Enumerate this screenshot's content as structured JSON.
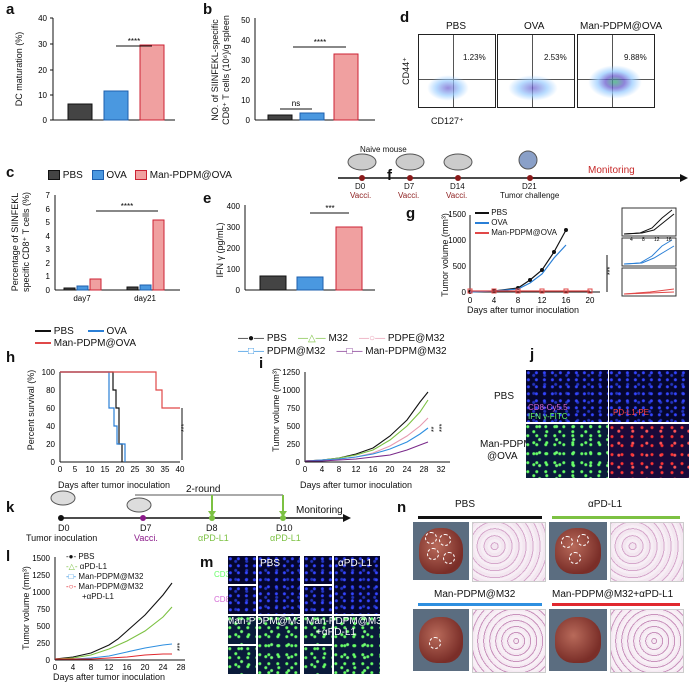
{
  "panel_labels": {
    "a": "a",
    "b": "b",
    "c": "c",
    "d": "d",
    "e": "e",
    "f": "f",
    "g": "g",
    "h": "h",
    "i": "i",
    "j": "j",
    "k": "k",
    "l": "l",
    "m": "m",
    "n": "n"
  },
  "common": {
    "sig4": "****",
    "sig3": "***",
    "ns": "ns"
  },
  "panel_a": {
    "ylabel": "DC maturation (%)",
    "yticks": [
      "0",
      "10",
      "20",
      "30",
      "40"
    ]
  },
  "panel_b": {
    "ylabel1": "NO. of SIINFEKL-specific",
    "ylabel2": "CD8⁺ T cells (10⁶)/g spleen",
    "yticks": [
      "0",
      "10",
      "20",
      "30",
      "40",
      "50"
    ]
  },
  "panel_d": {
    "groups": [
      "PBS",
      "OVA",
      "Man-PDPM@OVA"
    ],
    "percents": [
      "1.23%",
      "2.53%",
      "9.88%"
    ],
    "xlabel": "CD127⁺",
    "ylabel": "CD44⁺"
  },
  "panel_c": {
    "legend": [
      "PBS",
      "OVA",
      "Man-PDPM@OVA"
    ],
    "ylabel1": "Percentage of SIINFEKL",
    "ylabel2": "specific CD8⁺ T cells (%)",
    "yticks": [
      "0",
      "1",
      "2",
      "3",
      "4",
      "5",
      "6",
      "7"
    ],
    "xticks": [
      "day7",
      "day21"
    ]
  },
  "panel_e": {
    "ylabel": "IFN γ (pg/mL)",
    "yticks": [
      "0",
      "100",
      "200",
      "300",
      "400"
    ]
  },
  "panel_f": {
    "naive": "Naive mouse",
    "steps": [
      {
        "day": "D0",
        "label": "Vacci."
      },
      {
        "day": "D7",
        "label": "Vacci."
      },
      {
        "day": "D14",
        "label": "Vacci."
      },
      {
        "day": "D21",
        "label": "Tumor challenge"
      }
    ],
    "monitoring": "Monitoring"
  },
  "panel_g": {
    "ylabel": "Tumor volume (mm³)",
    "xlabel": "Days after tumor inoculation",
    "legend": [
      "PBS",
      "OVA",
      "Man-PDPM@OVA"
    ],
    "yticks": [
      "0",
      "500",
      "1000",
      "1500"
    ],
    "xticks": [
      "0",
      "4",
      "8",
      "12",
      "16",
      "20"
    ],
    "inset_ticks": [
      "4",
      "8",
      "12",
      "16"
    ]
  },
  "panel_h": {
    "legend": [
      "PBS",
      "OVA",
      "Man-PDPM@OVA"
    ],
    "ylabel": "Percent survival (%)",
    "xlabel": "Days after tumor inoculation",
    "yticks": [
      "0",
      "20",
      "40",
      "60",
      "80",
      "100"
    ],
    "xticks": [
      "0",
      "5",
      "10",
      "15",
      "20",
      "25",
      "30",
      "35",
      "40"
    ]
  },
  "panel_i": {
    "legend": [
      "PBS",
      "M32",
      "PDPE@M32",
      "PDPM@M32",
      "Man-PDPM@M32"
    ],
    "ylabel": "Tumor volume (mm³)",
    "xlabel": "Days after tumor inoculation",
    "yticks": [
      "0",
      "250",
      "500",
      "750",
      "1000",
      "1250"
    ],
    "xticks": [
      "0",
      "4",
      "8",
      "12",
      "16",
      "20",
      "24",
      "28",
      "32"
    ],
    "sig": [
      "**",
      "***"
    ]
  },
  "panel_j": {
    "row1": "PBS",
    "row2a": "Man-PDPM",
    "row2b": "@OVA",
    "ch1a": "CD8-Cy5.5",
    "ch1b": "IFN γ-FITC",
    "ch2": "PD-L1-PE"
  },
  "panel_k": {
    "d0": "D0",
    "d0_label": "Tumor inoculation",
    "d7": "D7",
    "d7_label": "Vacci.",
    "d8": "D8",
    "d8_label": "αPD-L1",
    "d10": "D10",
    "d10_label": "αPD-L1",
    "round": "2-round",
    "monitoring": "Monitoring"
  },
  "panel_l": {
    "legend": [
      "PBS",
      "αPD-L1",
      "Man-PDPM@M32",
      "Man-PDPM@M32",
      "+αPD-L1"
    ],
    "ylabel": "Tumor volume (mm³)",
    "xlabel": "Days after tumor inoculation",
    "yticks": [
      "0",
      "250",
      "500",
      "750",
      "1000",
      "1250",
      "1500"
    ],
    "xticks": [
      "0",
      "4",
      "8",
      "12",
      "16",
      "20",
      "24",
      "28"
    ]
  },
  "panel_m": {
    "labels": [
      "PBS",
      "αPD-L1",
      "Man-PDPM@M32",
      "Man-PDPM@M32",
      "+αPD-L1"
    ],
    "ch1": "CD3",
    "ch2": "CD8"
  },
  "panel_n": {
    "labels": [
      "PBS",
      "αPD-L1",
      "Man-PDPM@M32",
      "Man-PDPM@M32+αPD-L1"
    ]
  },
  "colors": {
    "pbs": "#222222",
    "ova": "#2a7fd6",
    "man": "#e04848",
    "purple": "#7a2a8a",
    "green": "#7cc142",
    "pink": "#e79ab0",
    "blue": "#2e8fe0"
  }
}
